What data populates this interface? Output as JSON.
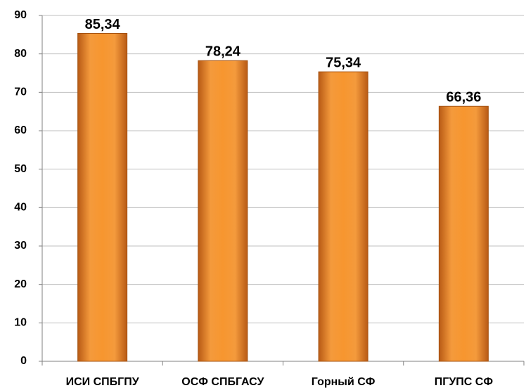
{
  "chart_data": {
    "type": "bar",
    "categories": [
      "ИСИ СПБГПУ",
      "ОСФ СПБГАСУ",
      "Горный СФ",
      "ПГУПС СФ"
    ],
    "values": [
      85.34,
      78.24,
      75.34,
      66.36
    ],
    "value_labels": [
      "85,34",
      "78,24",
      "75,34",
      "66,36"
    ],
    "color": "#f7962f",
    "ylim": [
      0,
      90
    ],
    "yticks": [
      0,
      10,
      20,
      30,
      40,
      50,
      60,
      70,
      80,
      90
    ],
    "grid": true
  }
}
